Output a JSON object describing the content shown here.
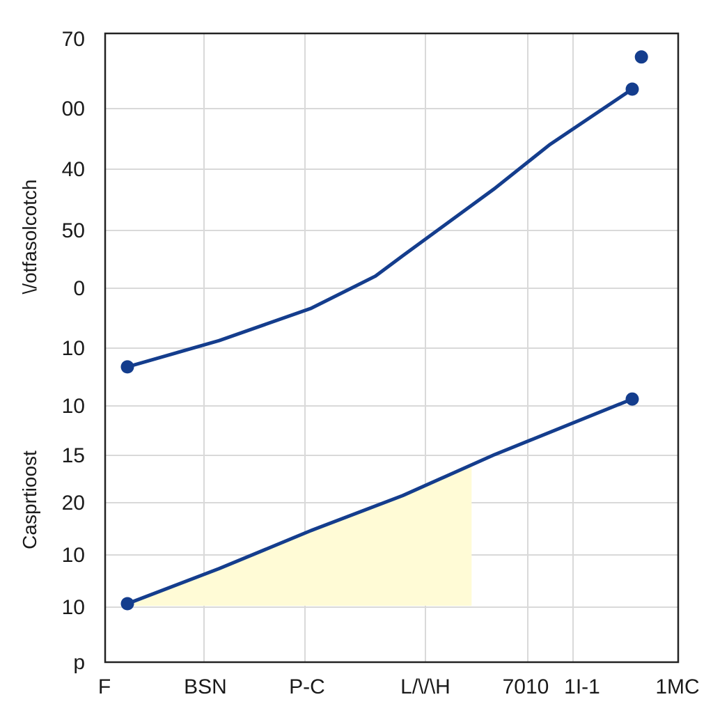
{
  "chart_data": {
    "type": "line",
    "y_tick_labels": [
      "70",
      "00",
      "40",
      "50",
      "0",
      "10",
      "10",
      "15",
      "20",
      "10",
      "10",
      "p"
    ],
    "x_tick_labels": [
      "F",
      "BSN",
      "P-C",
      "L/\\/\\H",
      "7010",
      "1I-1",
      "1MC"
    ],
    "ylabels": [
      "\\/otfasolcotch",
      "Casprtioost"
    ],
    "series": [
      {
        "color": "#143d8d",
        "x": [
          "F",
          "1I-1"
        ],
        "points": [
          {
            "x_pos": 0.0,
            "y_pos": 4.55
          },
          {
            "x_pos": 1.0,
            "y_pos": 5.0
          },
          {
            "x_pos": 2.0,
            "y_pos": 5.55
          },
          {
            "x_pos": 2.7,
            "y_pos": 6.1
          },
          {
            "x_pos": 3.0,
            "y_pos": 6.45
          },
          {
            "x_pos": 4.0,
            "y_pos": 7.6
          },
          {
            "x_pos": 4.6,
            "y_pos": 8.35
          },
          {
            "x_pos": 5.5,
            "y_pos": 9.3
          }
        ],
        "markers": [
          0,
          7
        ],
        "extra_markers": [
          {
            "x_pos": 5.6,
            "y_pos": 9.85
          }
        ]
      },
      {
        "color": "#143d8d",
        "points": [
          {
            "x_pos": 0.0,
            "y_pos": 0.5
          },
          {
            "x_pos": 1.0,
            "y_pos": 1.1
          },
          {
            "x_pos": 2.0,
            "y_pos": 1.75
          },
          {
            "x_pos": 3.0,
            "y_pos": 2.35
          },
          {
            "x_pos": 4.0,
            "y_pos": 3.05
          },
          {
            "x_pos": 5.5,
            "y_pos": 4.0
          }
        ],
        "markers": [
          0,
          5
        ],
        "fill": {
          "color": "#fffbd6",
          "to_x_pos": 3.75,
          "to_y_pos": 2.85
        }
      }
    ],
    "grid": true,
    "colors": {
      "line": "#143d8d",
      "marker": "#143d8d",
      "highlight": "#fffbd6",
      "grid": "#d9d9d9",
      "frame": "#222222"
    }
  }
}
